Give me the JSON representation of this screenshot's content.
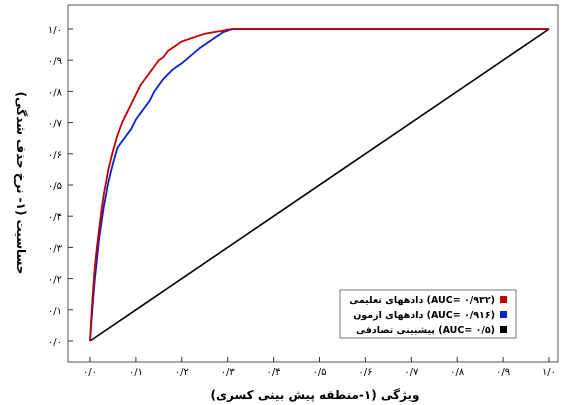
{
  "chart_data": {
    "type": "line",
    "xlabel": "ویژگی (۱-منطقه پیش بینی کسری)",
    "ylabel": "حساسیت (۱- نرخ حذف شدگی)",
    "xlim": [
      0,
      1
    ],
    "ylim": [
      0,
      1
    ],
    "x_tick_labels": [
      "۰/۰",
      "۰/۱",
      "۰/۲",
      "۰/۳",
      "۰/۴",
      "۰/۵",
      "۰/۶",
      "۰/۷",
      "۰/۸",
      "۰/۹",
      "۱/۰"
    ],
    "y_tick_labels": [
      "۰/۰",
      "۰/۱",
      "۰/۲",
      "۰/۳",
      "۰/۴",
      "۰/۵",
      "۰/۶",
      "۰/۷",
      "۰/۸",
      "۰/۹",
      "۱/۰"
    ],
    "grid": false,
    "legend_position": "bottom-right",
    "series": [
      {
        "name": "دادههای تعلیمی (AUC= ۰/۹۳۲)",
        "color": "#c00000",
        "x": [
          0,
          0.003,
          0.006,
          0.01,
          0.015,
          0.02,
          0.025,
          0.03,
          0.04,
          0.05,
          0.06,
          0.07,
          0.08,
          0.09,
          0.1,
          0.11,
          0.12,
          0.13,
          0.14,
          0.15,
          0.16,
          0.17,
          0.18,
          0.19,
          0.2,
          0.21,
          0.22,
          0.23,
          0.24,
          0.25,
          0.27,
          0.29,
          0.3,
          0.31,
          1.0
        ],
        "y": [
          0,
          0.08,
          0.15,
          0.23,
          0.3,
          0.36,
          0.42,
          0.47,
          0.55,
          0.61,
          0.66,
          0.7,
          0.73,
          0.76,
          0.79,
          0.82,
          0.84,
          0.86,
          0.88,
          0.9,
          0.91,
          0.93,
          0.94,
          0.95,
          0.96,
          0.965,
          0.97,
          0.975,
          0.98,
          0.985,
          0.99,
          0.995,
          0.998,
          1.0,
          1.0
        ]
      },
      {
        "name": "دادههای ازمون (AUC= ۰/۹۱۶)",
        "color": "#0a22c9",
        "x": [
          0,
          0.003,
          0.006,
          0.01,
          0.015,
          0.02,
          0.025,
          0.03,
          0.04,
          0.05,
          0.06,
          0.07,
          0.08,
          0.09,
          0.1,
          0.11,
          0.12,
          0.13,
          0.14,
          0.15,
          0.16,
          0.17,
          0.18,
          0.19,
          0.2,
          0.22,
          0.24,
          0.26,
          0.27,
          0.28,
          0.29,
          0.3,
          0.31,
          1.0
        ],
        "y": [
          0,
          0.06,
          0.12,
          0.19,
          0.26,
          0.33,
          0.38,
          0.43,
          0.51,
          0.57,
          0.62,
          0.64,
          0.66,
          0.68,
          0.71,
          0.73,
          0.75,
          0.77,
          0.8,
          0.82,
          0.84,
          0.855,
          0.87,
          0.88,
          0.89,
          0.915,
          0.94,
          0.96,
          0.97,
          0.98,
          0.99,
          0.995,
          1.0,
          1.0
        ]
      },
      {
        "name": "پیشبینی تصادفی (AUC= ۰/۵)",
        "color": "#000000",
        "x": [
          0,
          1
        ],
        "y": [
          0,
          1
        ]
      }
    ]
  }
}
